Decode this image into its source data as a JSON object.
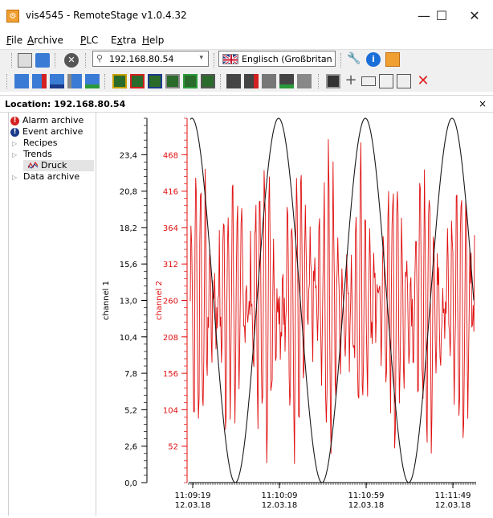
{
  "window": {
    "app_icon": "remotestage-logo-icon",
    "title": "vis4545 - RemoteStage v1.0.4.32",
    "controls": {
      "minimize": "—",
      "maximize": "☐",
      "close": "✕"
    }
  },
  "menu": [
    {
      "pre": "",
      "u": "F",
      "post": "ile"
    },
    {
      "pre": "",
      "u": "A",
      "post": "rchive"
    },
    {
      "pre": "",
      "u": "P",
      "post": "LC"
    },
    {
      "pre": "E",
      "u": "x",
      "post": "tra"
    },
    {
      "pre": "",
      "u": "H",
      "post": "elp"
    }
  ],
  "toolbar": {
    "address_value": "192.168.80.54",
    "language_value": "Englisch (Großbritan",
    "icons_row1": [
      "clipboard-icon",
      "folder-open-icon",
      "disconnect-icon",
      "search-icon",
      "dropdown-caret-icon",
      "uk-flag-icon",
      "tools-icon",
      "info-icon",
      "remotestage-icon"
    ],
    "icons_row2": [
      "open-archive-icon",
      "delete-archive-icon",
      "export-archive-icon",
      "import-archive-icon",
      "convert-archive-icon",
      "table-icon",
      "table-red-icon",
      "table-green-icon",
      "table-blue-icon",
      "table-export-icon",
      "table-print-icon",
      "save-icon",
      "save-red-icon",
      "save-all-icon",
      "save-green-icon",
      "save-print-icon",
      "floppy-icon",
      "add-icon",
      "window-icon",
      "copy-icon",
      "paste-icon",
      "delete-icon"
    ]
  },
  "location": {
    "label": "Location: 192.168.80.54",
    "close": "×"
  },
  "tree": [
    {
      "label": "Alarm archive",
      "icon": "alarm-icon",
      "icon_color": "#d32020",
      "icon_glyph": "!",
      "indent": 0
    },
    {
      "label": "Event archive",
      "icon": "event-icon",
      "icon_color": "#1a3a8a",
      "icon_glyph": "!",
      "indent": 0
    },
    {
      "label": "Recipes",
      "icon": "expand-arrow-icon",
      "indent": 0,
      "arrow": "▷"
    },
    {
      "label": "Trends",
      "icon": "collapse-arrow-icon",
      "indent": 0,
      "arrow": "▷"
    },
    {
      "label": "Druck",
      "icon": "trend-chart-icon",
      "indent": 1,
      "selected": true
    },
    {
      "label": "Data archive",
      "icon": "expand-arrow-icon",
      "indent": 0,
      "arrow": "▷"
    }
  ],
  "chart_data": {
    "type": "line",
    "title": "",
    "xlabel": "",
    "y1label": "channel 1",
    "y2label": "channel 2",
    "y1lim": [
      0,
      26
    ],
    "y2lim": [
      0,
      520
    ],
    "y1ticks": [
      "0,0",
      "2,6",
      "5,2",
      "7,8",
      "10,4",
      "13,0",
      "15,6",
      "18,2",
      "20,8",
      "23,4"
    ],
    "y2ticks": [
      "52",
      "104",
      "156",
      "208",
      "260",
      "312",
      "364",
      "416",
      "468"
    ],
    "xticks": [
      {
        "time": "11:09:19",
        "date": "12.03.18"
      },
      {
        "time": "11:10:09",
        "date": "12.03.18"
      },
      {
        "time": "11:10:59",
        "date": "12.03.18"
      },
      {
        "time": "11:11:49",
        "date": "12.03.18"
      }
    ],
    "series": [
      {
        "name": "channel 1",
        "color": "#1a1a1a",
        "peaks_at_max": 4,
        "min": 0.0,
        "max": 26.0
      },
      {
        "name": "channel 2",
        "color": "#e01010",
        "min": 0,
        "max": 490
      }
    ]
  }
}
